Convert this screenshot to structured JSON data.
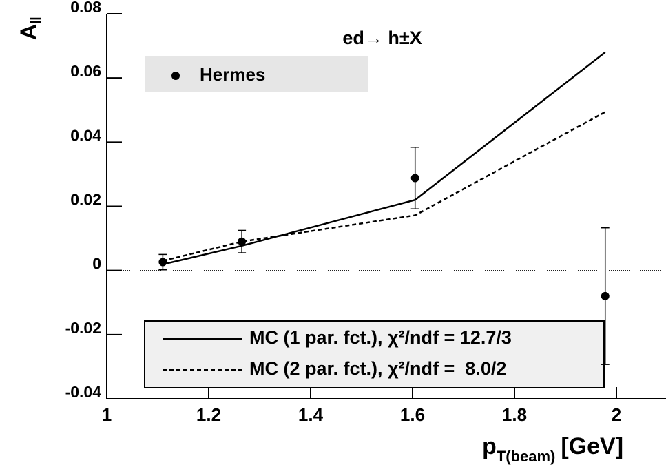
{
  "chart_data": {
    "type": "line",
    "annotation": "ed→ h±X",
    "xlabel": [
      "p",
      "T(beam)",
      "[GeV]"
    ],
    "ylabel": [
      "A",
      "‖"
    ],
    "x": [
      1.11,
      1.265,
      1.605,
      1.978
    ],
    "series": [
      {
        "name": "Hermes",
        "mode": "markers",
        "color": "#000000",
        "values": [
          0.0026,
          0.009,
          0.0288,
          -0.008
        ],
        "errors": [
          0.0024,
          0.0035,
          0.0096,
          0.0213
        ]
      },
      {
        "name": "MC (1 par. fct.), χ²/ndf = 12.7/3",
        "mode": "line",
        "dash": "solid",
        "color": "#000000",
        "values": [
          0.0019,
          0.0077,
          0.022,
          0.068
        ]
      },
      {
        "name": "MC (2 par. fct.), χ²/ndf =  8.0/2",
        "mode": "line",
        "dash": "dashed",
        "color": "#000000",
        "values": [
          0.003,
          0.009,
          0.0172,
          0.0494
        ]
      }
    ],
    "xlim": [
      1,
      2.1
    ],
    "ylim": [
      -0.04,
      0.08
    ],
    "xticks": [
      1,
      1.2,
      1.4,
      1.6,
      1.8,
      2
    ],
    "yticks": [
      -0.04,
      -0.02,
      0,
      0.02,
      0.04,
      0.06,
      0.08
    ],
    "zero_line": true
  }
}
